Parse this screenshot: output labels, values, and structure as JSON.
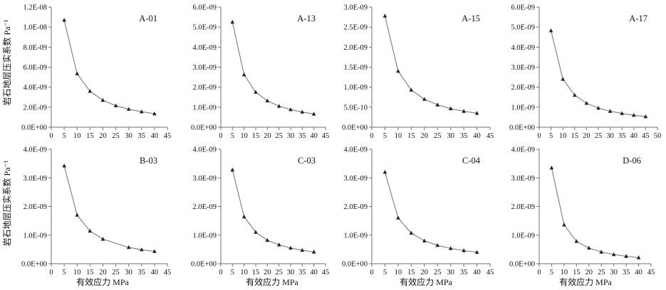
{
  "figure": {
    "xlabel": "有效应力 MPa",
    "ylabel": "岩石地层压实系数 Pa⁻¹",
    "colors": {
      "line": "#7a7a7a",
      "marker": "#222222",
      "axis": "#6f6f6f",
      "text": "#111111"
    }
  },
  "chart_data": [
    {
      "type": "line",
      "label": "A-01",
      "x": [
        5,
        10,
        15,
        20,
        25,
        30,
        35,
        40
      ],
      "y": [
        1.07e-08,
        5.35e-09,
        3.6e-09,
        2.7e-09,
        2.15e-09,
        1.8e-09,
        1.55e-09,
        1.35e-09
      ],
      "xlim": [
        0,
        45
      ],
      "xticks": [
        0,
        5,
        10,
        15,
        20,
        25,
        30,
        35,
        40,
        45
      ],
      "ylim": [
        0,
        1.2e-08
      ],
      "yticks": [
        0,
        2e-09,
        4e-09,
        6e-09,
        8e-09,
        1e-08,
        1.2e-08
      ],
      "ytick_labels": [
        "0.0E+00",
        "2.0E-09",
        "4.0E-09",
        "6.0E-09",
        "8.0E-09",
        "1.0E-08",
        "1.2E-08"
      ]
    },
    {
      "type": "line",
      "label": "A-13",
      "x": [
        5,
        10,
        15,
        20,
        25,
        30,
        35,
        40
      ],
      "y": [
        5.25e-09,
        2.62e-09,
        1.75e-09,
        1.32e-09,
        1.05e-09,
        8.8e-10,
        7.6e-10,
        6.6e-10
      ],
      "xlim": [
        0,
        45
      ],
      "xticks": [
        0,
        5,
        10,
        15,
        20,
        25,
        30,
        35,
        40,
        45
      ],
      "ylim": [
        0,
        6e-09
      ],
      "yticks": [
        0,
        1e-09,
        2e-09,
        3e-09,
        4e-09,
        5e-09,
        6e-09
      ],
      "ytick_labels": [
        "0.0E+00",
        "1.0E-09",
        "2.0E-09",
        "3.0E-09",
        "4.0E-09",
        "5.0E-09",
        "6.0E-09"
      ]
    },
    {
      "type": "line",
      "label": "A-15",
      "x": [
        5,
        10,
        15,
        20,
        25,
        30,
        35,
        40
      ],
      "y": [
        2.78e-09,
        1.4e-09,
        9.3e-10,
        7e-10,
        5.6e-10,
        4.65e-10,
        4e-10,
        3.5e-10
      ],
      "xlim": [
        0,
        45
      ],
      "xticks": [
        0,
        5,
        10,
        15,
        20,
        25,
        30,
        35,
        40,
        45
      ],
      "ylim": [
        0,
        3e-09
      ],
      "yticks": [
        0,
        5e-10,
        1e-09,
        1.5e-09,
        2e-09,
        2.5e-09,
        3e-09
      ],
      "ytick_labels": [
        "0.0E+00",
        "5.0E-10",
        "1.0E-09",
        "1.5E-09",
        "2.0E-09",
        "2.5E-09",
        "3.0E-09"
      ]
    },
    {
      "type": "line",
      "label": "A-17",
      "x": [
        5,
        10,
        15,
        20,
        25,
        30,
        35,
        40,
        45
      ],
      "y": [
        4.82e-09,
        2.4e-09,
        1.6e-09,
        1.2e-09,
        9.6e-10,
        8e-10,
        6.9e-10,
        6e-10,
        5.3e-10
      ],
      "xlim": [
        0,
        50
      ],
      "xticks": [
        0,
        5,
        10,
        15,
        20,
        25,
        30,
        35,
        40,
        45,
        50
      ],
      "ylim": [
        0,
        6e-09
      ],
      "yticks": [
        0,
        1e-09,
        2e-09,
        3e-09,
        4e-09,
        5e-09,
        6e-09
      ],
      "ytick_labels": [
        "0.0E+00",
        "1.0E-09",
        "2.0E-09",
        "3.0E-09",
        "4.0E-09",
        "5.0E-09",
        "6.0E-09"
      ]
    },
    {
      "type": "line",
      "label": "B-03",
      "x": [
        5,
        10,
        15,
        20,
        30,
        35,
        40
      ],
      "y": [
        3.42e-09,
        1.7e-09,
        1.14e-09,
        8.6e-10,
        5.7e-10,
        4.9e-10,
        4.3e-10
      ],
      "xlim": [
        0,
        45
      ],
      "xticks": [
        0,
        5,
        10,
        15,
        20,
        25,
        30,
        35,
        40,
        45
      ],
      "ylim": [
        0,
        4e-09
      ],
      "yticks": [
        0,
        1e-09,
        2e-09,
        3e-09,
        4e-09
      ],
      "ytick_labels": [
        "0.0E+00",
        "1.0E-09",
        "2.0E-09",
        "3.0E-09",
        "4.0E-09"
      ]
    },
    {
      "type": "line",
      "label": "C-03",
      "x": [
        5,
        10,
        15,
        20,
        25,
        30,
        35,
        40
      ],
      "y": [
        3.28e-09,
        1.64e-09,
        1.1e-09,
        8.2e-10,
        6.6e-10,
        5.5e-10,
        4.7e-10,
        4.1e-10
      ],
      "xlim": [
        0,
        45
      ],
      "xticks": [
        0,
        5,
        10,
        15,
        20,
        25,
        30,
        35,
        40,
        45
      ],
      "ylim": [
        0,
        4e-09
      ],
      "yticks": [
        0,
        1e-09,
        2e-09,
        3e-09,
        4e-09
      ],
      "ytick_labels": [
        "0.0E+00",
        "1.0E-09",
        "2.0E-09",
        "3.0E-09",
        "4.0E-09"
      ]
    },
    {
      "type": "line",
      "label": "C-04",
      "x": [
        5,
        10,
        15,
        20,
        25,
        30,
        35,
        40
      ],
      "y": [
        3.2e-09,
        1.6e-09,
        1.07e-09,
        8e-10,
        6.4e-10,
        5.35e-10,
        4.6e-10,
        4e-10
      ],
      "xlim": [
        0,
        45
      ],
      "xticks": [
        0,
        5,
        10,
        15,
        20,
        25,
        30,
        35,
        40,
        45
      ],
      "ylim": [
        0,
        4e-09
      ],
      "yticks": [
        0,
        1e-09,
        2e-09,
        3e-09,
        4e-09
      ],
      "ytick_labels": [
        "0.0E+00",
        "1.0E-09",
        "2.0E-09",
        "3.0E-09",
        "4.0E-09"
      ]
    },
    {
      "type": "line",
      "label": "D-06",
      "x": [
        5,
        10,
        15,
        20,
        25,
        30,
        35,
        40
      ],
      "y": [
        3.35e-09,
        1.36e-09,
        7.8e-10,
        5.5e-10,
        4.1e-10,
        3.2e-10,
        2.6e-10,
        2.1e-10
      ],
      "xlim": [
        0,
        45
      ],
      "xticks": [
        0,
        5,
        10,
        15,
        20,
        25,
        30,
        35,
        40,
        45
      ],
      "ylim": [
        0,
        4e-09
      ],
      "yticks": [
        0,
        1e-09,
        2e-09,
        3e-09,
        4e-09
      ],
      "ytick_labels": [
        "0.0E+00",
        "1.0E-09",
        "2.0E-09",
        "3.0E-09",
        "4.0E-09"
      ]
    }
  ]
}
